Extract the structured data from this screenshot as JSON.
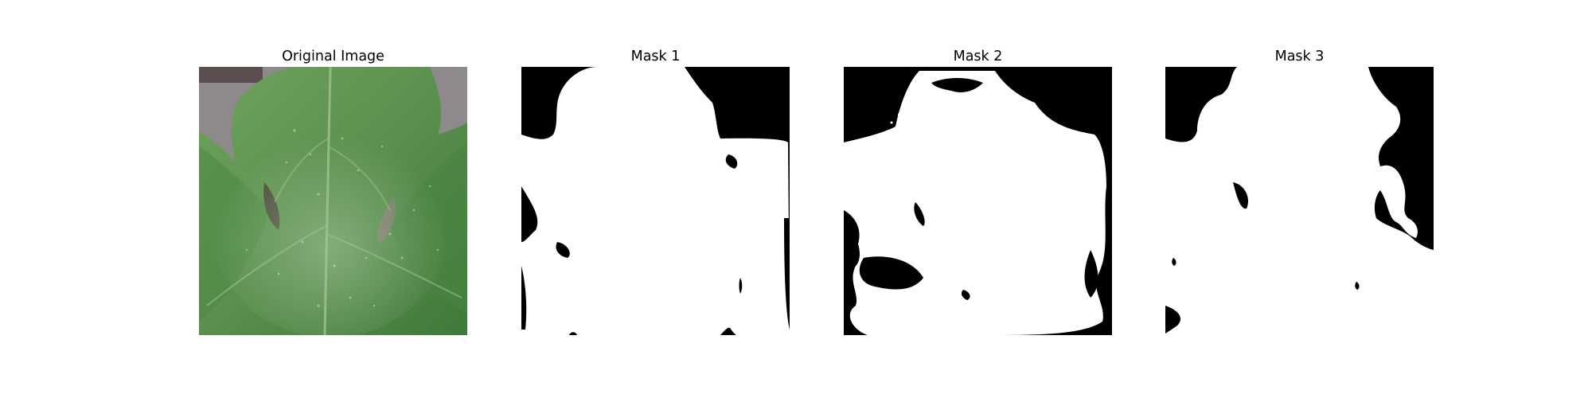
{
  "figure": {
    "panels": [
      {
        "title": "Original Image",
        "kind": "photo",
        "subject": "leaf-photo"
      },
      {
        "title": "Mask 1",
        "kind": "mask",
        "subject": "binary-mask"
      },
      {
        "title": "Mask 2",
        "kind": "mask",
        "subject": "binary-mask"
      },
      {
        "title": "Mask 3",
        "kind": "mask",
        "subject": "binary-mask"
      }
    ],
    "colors": {
      "background": "#ffffff",
      "leaf_dark": "#3f7a3a",
      "leaf_mid": "#5c9450",
      "leaf_light": "#7bab6a",
      "backdrop": "#8e8a8c",
      "mask_fg": "#ffffff",
      "mask_bg": "#000000"
    }
  }
}
